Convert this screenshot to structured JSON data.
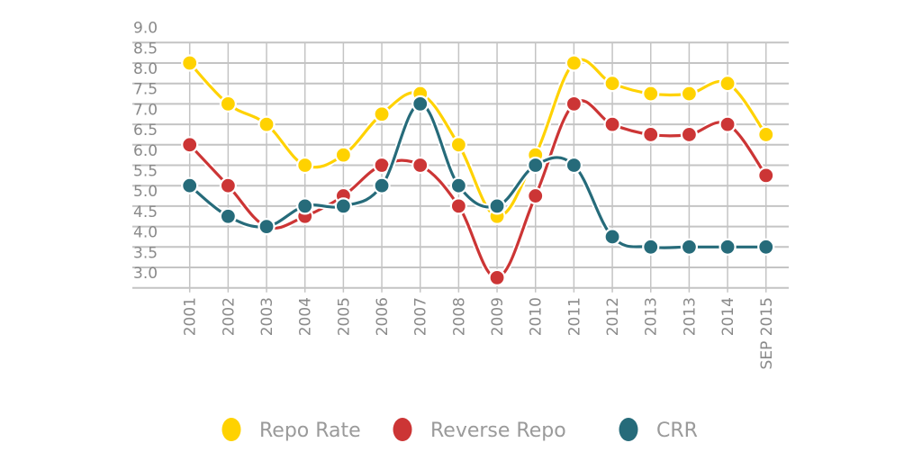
{
  "chart_data": {
    "type": "line",
    "categories": [
      "2001",
      "2002",
      "2003",
      "2004",
      "2005",
      "2006",
      "2007",
      "2008",
      "2009",
      "2010",
      "2011",
      "2012",
      "2013",
      "2013",
      "2014",
      "SEP 2015"
    ],
    "series": [
      {
        "name": "Repo Rate",
        "color": "#FFD200",
        "values": [
          8.0,
          7.0,
          6.5,
          5.5,
          5.75,
          6.75,
          7.25,
          6.0,
          4.25,
          5.75,
          8.0,
          7.5,
          7.25,
          7.25,
          7.5,
          6.25
        ]
      },
      {
        "name": "Reverse Repo",
        "color": "#CC3535",
        "values": [
          6.0,
          5.0,
          4.0,
          4.25,
          4.75,
          5.5,
          5.5,
          4.5,
          2.75,
          4.75,
          7.0,
          6.5,
          6.25,
          6.25,
          6.5,
          5.25
        ]
      },
      {
        "name": "CRR",
        "color": "#266B7A",
        "values": [
          5.0,
          4.25,
          4.0,
          4.5,
          4.5,
          5.0,
          7.0,
          5.0,
          4.5,
          5.5,
          5.5,
          3.75,
          3.5,
          3.5,
          3.5,
          3.5
        ]
      }
    ],
    "y_ticks": [
      "3.0",
      "3.5",
      "4.0",
      "4.5",
      "5.0",
      "5.5",
      "6.0",
      "6.5",
      "7.0",
      "7.5",
      "8.0",
      "8.5",
      "9.0"
    ],
    "ylim": [
      2.5,
      9.0
    ],
    "grid": true,
    "legend": "bottom"
  }
}
